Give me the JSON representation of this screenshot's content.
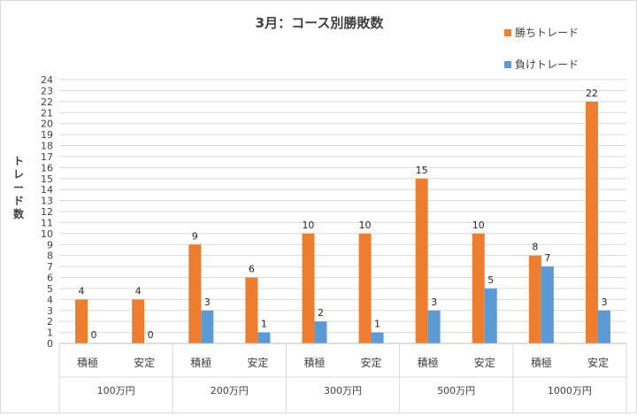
{
  "chart_data": {
    "type": "bar",
    "title": "3月：コース別勝敗数",
    "ylabel": "トレード数",
    "ylim": [
      0,
      24
    ],
    "ytick_step": 1,
    "grid": true,
    "legend_position": "top-right",
    "categories": [
      "積極",
      "安定",
      "積極",
      "安定",
      "積極",
      "安定",
      "積極",
      "安定",
      "積極",
      "安定"
    ],
    "groups": [
      "100万円",
      "200万円",
      "300万円",
      "500万円",
      "1000万円"
    ],
    "series": [
      {
        "name": "勝ちトレード",
        "color": "#ed7d31",
        "values": [
          4,
          4,
          9,
          6,
          10,
          10,
          15,
          10,
          8,
          22
        ]
      },
      {
        "name": "負けトレード",
        "color": "#5b9bd5",
        "values": [
          0,
          0,
          3,
          1,
          2,
          1,
          3,
          5,
          7,
          3
        ]
      }
    ]
  }
}
